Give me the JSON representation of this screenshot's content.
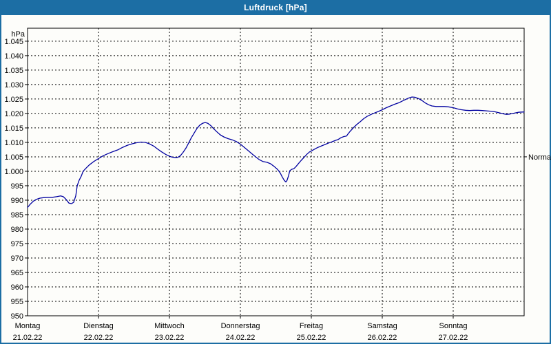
{
  "window": {
    "title": "Luftdruck [hPa]"
  },
  "colors": {
    "titlebar": "#1c6ea4",
    "frame": "#1c6ea4",
    "background": "#fdfdfa",
    "curve": "#0000a0",
    "grid": "#000000",
    "text": "#000000",
    "title_text": "#ffffff"
  },
  "chart_data": {
    "type": "line",
    "title": "Luftdruck [hPa]",
    "unit_label": "hPa",
    "ylim": [
      950,
      1049.5
    ],
    "grid": true,
    "yticks": [
      {
        "value": 1045,
        "label": "1.045"
      },
      {
        "value": 1040,
        "label": "1.040"
      },
      {
        "value": 1035,
        "label": "1.035"
      },
      {
        "value": 1030,
        "label": "1.030"
      },
      {
        "value": 1025,
        "label": "1.025"
      },
      {
        "value": 1020,
        "label": "1.020"
      },
      {
        "value": 1015,
        "label": "1.015"
      },
      {
        "value": 1010,
        "label": "1.010"
      },
      {
        "value": 1005,
        "label": "1.005"
      },
      {
        "value": 1000,
        "label": "1.000"
      },
      {
        "value": 995,
        "label": "995"
      },
      {
        "value": 990,
        "label": "990"
      },
      {
        "value": 985,
        "label": "985"
      },
      {
        "value": 980,
        "label": "980"
      },
      {
        "value": 975,
        "label": "975"
      },
      {
        "value": 970,
        "label": "970"
      },
      {
        "value": 965,
        "label": "965"
      },
      {
        "value": 960,
        "label": "960"
      },
      {
        "value": 955,
        "label": "955"
      },
      {
        "value": 950,
        "label": "950"
      }
    ],
    "x_range_hours": [
      0,
      168
    ],
    "x_days": [
      {
        "name": "Montag",
        "date": "21.02.22",
        "start_hour": 0
      },
      {
        "name": "Dienstag",
        "date": "22.02.22",
        "start_hour": 24
      },
      {
        "name": "Mittwoch",
        "date": "23.02.22",
        "start_hour": 48
      },
      {
        "name": "Donnerstag",
        "date": "24.02.22",
        "start_hour": 72
      },
      {
        "name": "Freitag",
        "date": "25.02.22",
        "start_hour": 96
      },
      {
        "name": "Samstag",
        "date": "26.02.22",
        "start_hour": 120
      },
      {
        "name": "Sonntag",
        "date": "27.02.22",
        "start_hour": 144
      }
    ],
    "normal_marker": {
      "label": "Normal",
      "value": 1005
    },
    "series": [
      {
        "name": "Luftdruck",
        "x_hours": [
          0,
          0.9,
          1.9,
          3,
          4.2,
          5.6,
          7,
          8.4,
          9.8,
          11.2,
          12.1,
          13,
          14,
          14.9,
          15.6,
          16.3,
          16.8,
          17.4,
          18.2,
          18.8,
          19.8,
          20.9,
          22.3,
          24,
          25.6,
          27.2,
          28.9,
          30.5,
          32.2,
          33.8,
          35.4,
          37,
          38.4,
          39.8,
          41.2,
          42.7,
          44,
          45.4,
          46.8,
          48,
          48.9,
          49.9,
          50.8,
          51.7,
          52.6,
          53.6,
          54.5,
          55.4,
          56.4,
          57.3,
          58.2,
          59.2,
          60.1,
          61,
          62,
          62.9,
          64.1,
          65.2,
          66.4,
          67.8,
          69.2,
          70.6,
          72,
          73.3,
          74.7,
          76.1,
          77.3,
          78.4,
          79.6,
          81,
          82.2,
          83.4,
          84.6,
          85.5,
          86.2,
          86.9,
          87.4,
          87.8,
          88.3,
          88.7,
          89.4,
          90.1,
          90.8,
          91.7,
          92.6,
          93.6,
          94.5,
          95.4,
          96,
          97.2,
          98.3,
          99.5,
          100.7,
          101.9,
          103,
          104.2,
          105.1,
          106,
          107,
          107.9,
          108.5,
          109.1,
          110.2,
          111.4,
          112.6,
          113.7,
          114.9,
          116.3,
          117.7,
          118.9,
          120,
          121.4,
          122.8,
          124.2,
          125.6,
          127,
          128.2,
          129.1,
          130.1,
          131,
          132.2,
          133.4,
          134.5,
          135.7,
          136.8,
          138.2,
          139.6,
          141,
          142.4,
          144,
          145.4,
          146.8,
          148.2,
          149.6,
          151,
          152.4,
          153.8,
          155.2,
          156.6,
          158,
          159.4,
          160.8,
          162,
          163.2,
          164.6,
          166,
          167.4,
          168
        ],
        "values": [
          987.5,
          988.6,
          989.6,
          990.3,
          990.7,
          990.9,
          991.0,
          991.0,
          991.2,
          991.5,
          991.2,
          990.3,
          989.0,
          988.8,
          989.3,
          991.5,
          995.0,
          996.8,
          998.4,
          1000.0,
          1001.1,
          1002.2,
          1003.3,
          1004.4,
          1005.4,
          1006.1,
          1006.8,
          1007.4,
          1008.3,
          1009.0,
          1009.5,
          1009.9,
          1010.1,
          1010.0,
          1009.5,
          1008.7,
          1007.7,
          1006.7,
          1005.8,
          1005.2,
          1004.9,
          1004.7,
          1004.8,
          1005.4,
          1006.5,
          1008.0,
          1009.8,
          1011.6,
          1013.3,
          1014.8,
          1015.9,
          1016.6,
          1016.9,
          1016.6,
          1015.8,
          1014.8,
          1013.6,
          1012.6,
          1011.9,
          1011.3,
          1010.9,
          1010.3,
          1009.4,
          1008.3,
          1007.1,
          1005.9,
          1004.9,
          1004.0,
          1003.4,
          1003.1,
          1002.6,
          1001.7,
          1000.6,
          999.4,
          998.0,
          996.8,
          996.3,
          996.9,
          998.5,
          1000.2,
          1000.7,
          1000.9,
          1001.6,
          1002.7,
          1003.8,
          1004.9,
          1005.9,
          1006.7,
          1007.0,
          1007.7,
          1008.3,
          1008.8,
          1009.3,
          1009.8,
          1010.2,
          1010.7,
          1011.0,
          1011.6,
          1012.0,
          1012.2,
          1013.0,
          1013.8,
          1015.0,
          1016.2,
          1017.2,
          1018.2,
          1019.0,
          1019.7,
          1020.3,
          1020.8,
          1021.3,
          1022.0,
          1022.6,
          1023.2,
          1023.7,
          1024.4,
          1025.0,
          1025.4,
          1025.7,
          1025.6,
          1025.2,
          1024.5,
          1023.7,
          1023.0,
          1022.6,
          1022.4,
          1022.4,
          1022.4,
          1022.3,
          1022.0,
          1021.6,
          1021.3,
          1021.1,
          1021.0,
          1021.1,
          1021.1,
          1021.0,
          1020.9,
          1020.8,
          1020.6,
          1020.3,
          1019.9,
          1019.7,
          1019.8,
          1020.1,
          1020.4,
          1020.5,
          1020.5
        ]
      }
    ]
  }
}
